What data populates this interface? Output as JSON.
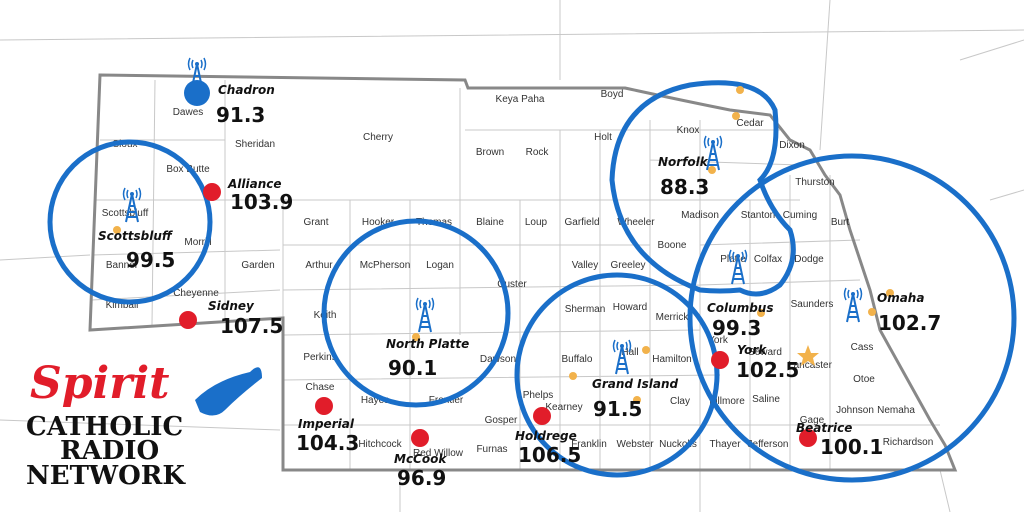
{
  "logo": {
    "brand": "Spirit",
    "line1": "CATHOLIC",
    "line2": "RADIO",
    "line3": "NETWORK"
  },
  "stations": [
    {
      "city": "Chadron",
      "frequency": "91.3"
    },
    {
      "city": "Alliance",
      "frequency": "103.9"
    },
    {
      "city": "Scottsbluff",
      "frequency": "99.5"
    },
    {
      "city": "Sidney",
      "frequency": "107.5"
    },
    {
      "city": "North Platte",
      "frequency": "90.1"
    },
    {
      "city": "Imperial",
      "frequency": "104.3"
    },
    {
      "city": "McCook",
      "frequency": "96.9"
    },
    {
      "city": "Holdrege",
      "frequency": "106.5"
    },
    {
      "city": "Grand Island",
      "frequency": "91.5"
    },
    {
      "city": "Norfolk",
      "frequency": "88.3"
    },
    {
      "city": "Columbus",
      "frequency": "99.3"
    },
    {
      "city": "York",
      "frequency": "102.5"
    },
    {
      "city": "Beatrice",
      "frequency": "100.1"
    },
    {
      "city": "Omaha",
      "frequency": "102.7"
    }
  ],
  "counties": [
    "Dawes",
    "Sioux",
    "Box Butte",
    "Sheridan",
    "Cherry",
    "Keya Paha",
    "Boyd",
    "Brown",
    "Rock",
    "Holt",
    "Knox",
    "Cedar",
    "Dixon",
    "Thurston",
    "Scottsbluff",
    "Morrill",
    "Banner",
    "Kimball",
    "Cheyenne",
    "Garden",
    "Grant",
    "Hooker",
    "Thomas",
    "Blaine",
    "Loup",
    "Garfield",
    "Wheeler",
    "Madison",
    "Stanton",
    "Cuming",
    "Burt",
    "Arthur",
    "McPherson",
    "Logan",
    "Custer",
    "Valley",
    "Greeley",
    "Boone",
    "Platte",
    "Colfax",
    "Dodge",
    "Saunders",
    "Keith",
    "Sherman",
    "Howard",
    "Merrick",
    "Hall",
    "Hamilton",
    "York",
    "Seward",
    "Lancaster",
    "Cass",
    "Otoe",
    "Perkins",
    "Chase",
    "Hayes",
    "Frontier",
    "Dawson",
    "Buffalo",
    "Phelps",
    "Kearney",
    "Gosper",
    "Clay",
    "Fillmore",
    "Saline",
    "Hitchcock",
    "Red Willow",
    "Furnas",
    "Franklin",
    "Webster",
    "Nuckolls",
    "Thayer",
    "Jefferson",
    "Gage",
    "Johnson",
    "Nemaha",
    "Richardson"
  ]
}
